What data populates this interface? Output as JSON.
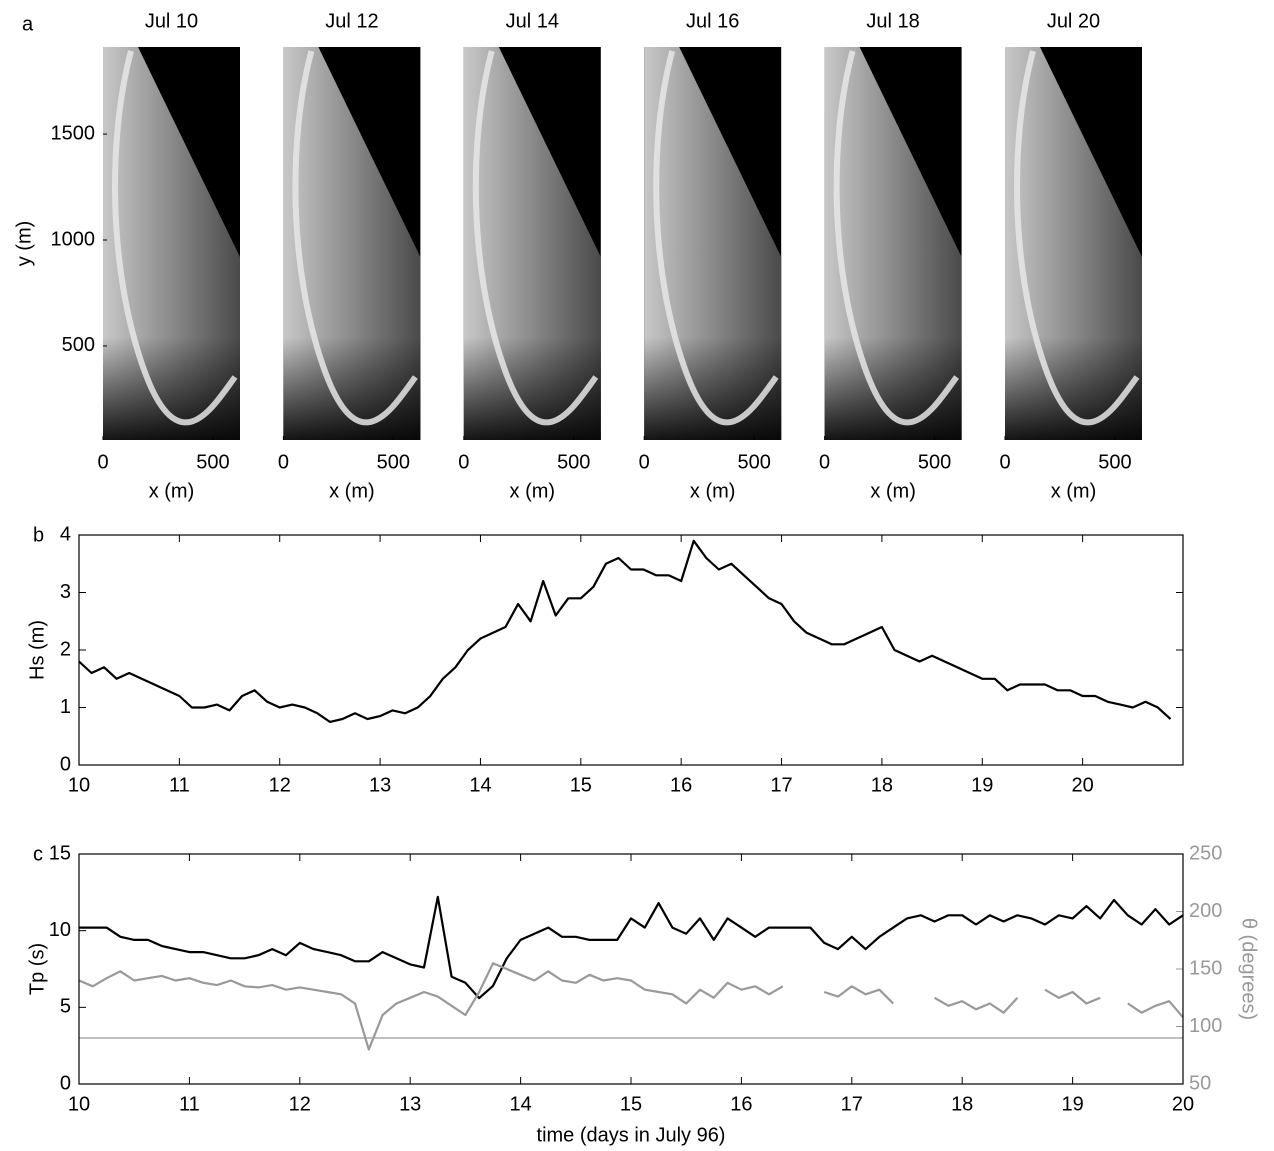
{
  "chart_data": [
    {
      "type": "image",
      "label": "a",
      "titles": [
        "Jul 10",
        "Jul 12",
        "Jul 14",
        "Jul 16",
        "Jul 18",
        "Jul 20"
      ],
      "xlabel": "x (m)",
      "ylabel": "y (m)",
      "xlim": [
        0,
        623
      ],
      "ylim": [
        56,
        1911
      ],
      "xticks": [
        0,
        500
      ],
      "yticks": [
        500,
        1000,
        1500
      ]
    },
    {
      "type": "line",
      "label": "b",
      "ylabel": "Hs (m)",
      "x": [
        10,
        10.125,
        10.25,
        10.375,
        10.5,
        10.625,
        10.75,
        10.875,
        11,
        11.125,
        11.25,
        11.375,
        11.5,
        11.625,
        11.75,
        11.875,
        12,
        12.125,
        12.25,
        12.375,
        12.5,
        12.625,
        12.75,
        12.875,
        13,
        13.125,
        13.25,
        13.375,
        13.5,
        13.625,
        13.75,
        13.875,
        14,
        14.125,
        14.25,
        14.375,
        14.5,
        14.625,
        14.75,
        14.875,
        15,
        15.125,
        15.25,
        15.375,
        15.5,
        15.625,
        15.75,
        15.875,
        16,
        16.125,
        16.25,
        16.375,
        16.5,
        16.625,
        16.75,
        16.875,
        17,
        17.125,
        17.25,
        17.375,
        17.5,
        17.625,
        17.75,
        17.875,
        18,
        18.125,
        18.25,
        18.375,
        18.5,
        18.625,
        18.75,
        18.875,
        19,
        19.125,
        19.25,
        19.375,
        19.5,
        19.625,
        19.75,
        19.875,
        20,
        20.125,
        20.25,
        20.375,
        20.5,
        20.625,
        20.75,
        20.875
      ],
      "series": [
        {
          "color": "#000000",
          "values": [
            1.8,
            1.6,
            1.7,
            1.5,
            1.6,
            1.5,
            1.4,
            1.3,
            1.2,
            1.0,
            1.0,
            1.05,
            0.95,
            1.2,
            1.3,
            1.1,
            1.0,
            1.05,
            1.0,
            0.9,
            0.75,
            0.8,
            0.9,
            0.8,
            0.85,
            0.95,
            0.9,
            1.0,
            1.2,
            1.5,
            1.7,
            2.0,
            2.2,
            2.3,
            2.4,
            2.8,
            2.5,
            3.2,
            2.6,
            2.9,
            2.9,
            3.1,
            3.5,
            3.6,
            3.4,
            3.4,
            3.3,
            3.3,
            3.2,
            3.9,
            3.6,
            3.4,
            3.5,
            3.3,
            3.1,
            2.9,
            2.8,
            2.5,
            2.3,
            2.2,
            2.1,
            2.1,
            2.2,
            2.3,
            2.4,
            2.0,
            1.9,
            1.8,
            1.9,
            1.8,
            1.7,
            1.6,
            1.5,
            1.5,
            1.3,
            1.4,
            1.4,
            1.4,
            1.3,
            1.3,
            1.2,
            1.2,
            1.1,
            1.05,
            1.0,
            1.1,
            1.0,
            0.8
          ]
        }
      ],
      "xlim": [
        10,
        21
      ],
      "ylim": [
        0,
        4
      ],
      "xticks": [
        10,
        11,
        12,
        13,
        14,
        15,
        16,
        17,
        18,
        19,
        20
      ],
      "yticks": [
        0,
        1,
        2,
        3,
        4
      ]
    },
    {
      "type": "line",
      "label": "c",
      "xlabel": "time (days in July 96)",
      "ylabel": "Tp (s)",
      "y2label": "θ (degrees)",
      "x": [
        10,
        10.125,
        10.25,
        10.375,
        10.5,
        10.625,
        10.75,
        10.875,
        11,
        11.125,
        11.25,
        11.375,
        11.5,
        11.625,
        11.75,
        11.875,
        12,
        12.125,
        12.25,
        12.375,
        12.5,
        12.625,
        12.75,
        12.875,
        13,
        13.125,
        13.25,
        13.375,
        13.5,
        13.625,
        13.75,
        13.875,
        14,
        14.125,
        14.25,
        14.375,
        14.5,
        14.625,
        14.75,
        14.875,
        15,
        15.125,
        15.25,
        15.375,
        15.5,
        15.625,
        15.75,
        15.875,
        16,
        16.125,
        16.25,
        16.375,
        16.5,
        16.625,
        16.75,
        16.875,
        17,
        17.125,
        17.25,
        17.375,
        17.5,
        17.625,
        17.75,
        17.875,
        18,
        18.125,
        18.25,
        18.375,
        18.5,
        18.625,
        18.75,
        18.875,
        19,
        19.125,
        19.25,
        19.375,
        19.5,
        19.625,
        19.75,
        19.875,
        20
      ],
      "series": [
        {
          "color": "#000000",
          "values": [
            10.2,
            10.2,
            10.2,
            9.6,
            9.4,
            9.4,
            9.0,
            8.8,
            8.6,
            8.6,
            8.4,
            8.2,
            8.2,
            8.4,
            8.8,
            8.4,
            9.2,
            8.8,
            8.6,
            8.4,
            8.0,
            8.0,
            8.6,
            8.2,
            7.8,
            7.6,
            12.2,
            7.0,
            6.6,
            5.6,
            6.4,
            8.2,
            9.4,
            9.8,
            10.2,
            9.6,
            9.6,
            9.4,
            9.4,
            9.4,
            10.8,
            10.2,
            11.8,
            10.2,
            9.8,
            10.8,
            9.4,
            10.8,
            10.2,
            9.6,
            10.2,
            10.2,
            10.2,
            10.2,
            9.2,
            8.8,
            9.6,
            8.8,
            9.6,
            10.2,
            10.8,
            11.0,
            10.6,
            11.0,
            11.0,
            10.4,
            11.0,
            10.6,
            11.0,
            10.8,
            10.4,
            11.0,
            10.8,
            11.6,
            10.8,
            12.0,
            11.0,
            10.4,
            11.4,
            10.4,
            11.0
          ]
        },
        {
          "color": "#999999",
          "axis": "y2",
          "values": [
            140,
            135,
            142,
            148,
            140,
            142,
            144,
            140,
            142,
            138,
            136,
            140,
            135,
            134,
            136,
            132,
            134,
            132,
            130,
            128,
            120,
            80,
            110,
            120,
            125,
            130,
            126,
            118,
            110,
            130,
            155,
            150,
            145,
            140,
            148,
            140,
            138,
            145,
            140,
            142,
            140,
            132,
            130,
            128,
            120,
            132,
            125,
            138,
            132,
            135,
            128,
            135,
            null,
            null,
            130,
            126,
            135,
            128,
            132,
            120,
            null,
            null,
            125,
            118,
            122,
            115,
            120,
            112,
            125,
            null,
            132,
            125,
            130,
            120,
            125,
            null,
            120,
            112,
            118,
            122,
            108
          ]
        }
      ],
      "hlines": [
        {
          "value": 90,
          "axis": "y2",
          "color": "#aaaaaa"
        }
      ],
      "xlim": [
        10,
        20
      ],
      "ylim": [
        0,
        15
      ],
      "y2lim": [
        50,
        250
      ],
      "xticks": [
        10,
        11,
        12,
        13,
        14,
        15,
        16,
        17,
        18,
        19,
        20
      ],
      "yticks": [
        0,
        5,
        10,
        15
      ],
      "y2ticks": [
        50,
        100,
        150,
        200,
        250
      ]
    }
  ]
}
